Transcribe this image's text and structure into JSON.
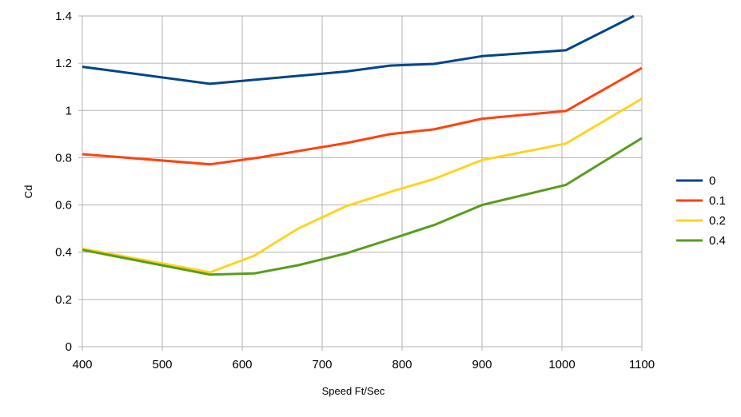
{
  "chart_data": {
    "type": "line",
    "title": "",
    "xlabel": "Speed Ft/Sec",
    "ylabel": "Cd",
    "xlim": [
      400,
      1100
    ],
    "ylim": [
      0,
      1.4
    ],
    "xticks": [
      "400",
      "500",
      "600",
      "700",
      "800",
      "900",
      "1000",
      "1100"
    ],
    "yticks": [
      "0",
      "0.2",
      "0.4",
      "0.6",
      "0.8",
      "1",
      "1.2",
      "1.4"
    ],
    "grid": true,
    "legend_position": "right",
    "series": [
      {
        "name": "0",
        "color": "#004586",
        "points": [
          [
            400,
            1.185
          ],
          [
            560,
            1.113
          ],
          [
            730,
            1.165
          ],
          [
            785,
            1.19
          ],
          [
            840,
            1.197
          ],
          [
            900,
            1.23
          ],
          [
            1005,
            1.255
          ],
          [
            1090,
            1.4
          ]
        ]
      },
      {
        "name": "0.1",
        "color": "#ff420e",
        "points": [
          [
            400,
            0.815
          ],
          [
            560,
            0.772
          ],
          [
            620,
            0.8
          ],
          [
            730,
            0.862
          ],
          [
            785,
            0.9
          ],
          [
            840,
            0.92
          ],
          [
            900,
            0.965
          ],
          [
            1005,
            0.998
          ],
          [
            1100,
            1.18
          ]
        ]
      },
      {
        "name": "0.2",
        "color": "#ffd320",
        "points": [
          [
            400,
            0.415
          ],
          [
            560,
            0.315
          ],
          [
            615,
            0.385
          ],
          [
            670,
            0.5
          ],
          [
            730,
            0.595
          ],
          [
            790,
            0.66
          ],
          [
            840,
            0.71
          ],
          [
            900,
            0.79
          ],
          [
            1005,
            0.86
          ],
          [
            1100,
            1.05
          ]
        ]
      },
      {
        "name": "0.4",
        "color": "#579d1c",
        "points": [
          [
            400,
            0.41
          ],
          [
            560,
            0.305
          ],
          [
            615,
            0.31
          ],
          [
            670,
            0.345
          ],
          [
            730,
            0.395
          ],
          [
            790,
            0.46
          ],
          [
            840,
            0.515
          ],
          [
            900,
            0.6
          ],
          [
            1005,
            0.685
          ],
          [
            1100,
            0.883
          ]
        ]
      }
    ]
  }
}
